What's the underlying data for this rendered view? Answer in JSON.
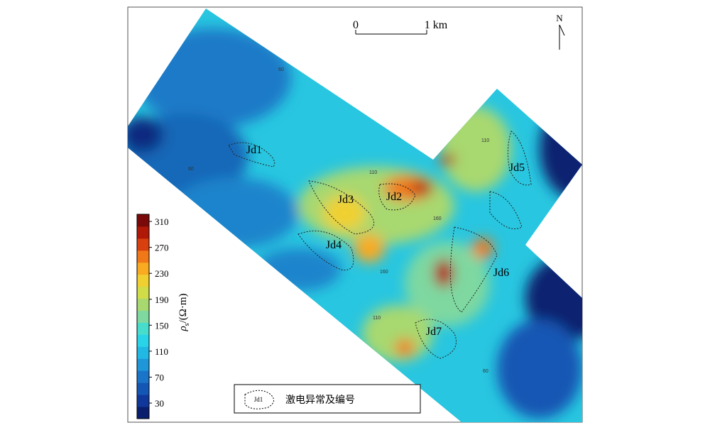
{
  "scale_bar": {
    "labels": [
      "0",
      "1 km"
    ]
  },
  "north": "N",
  "colorbar": {
    "symbol": "ρ",
    "subscript": "s",
    "unit": "/(Ω·m)",
    "ticks": [
      30,
      70,
      110,
      150,
      190,
      230,
      270,
      310
    ],
    "range": [
      6,
      321
    ],
    "colors": [
      "#0a1e6e",
      "#10389a",
      "#1456b4",
      "#1a74c8",
      "#1e96d8",
      "#22b8e4",
      "#2ad4e8",
      "#48dccc",
      "#7ed8a0",
      "#a8d870",
      "#d0dc48",
      "#f0d030",
      "#f8aa20",
      "#f07818",
      "#d84010",
      "#b01808",
      "#7a0a0a"
    ]
  },
  "anomalies": [
    "Jd1",
    "Jd2",
    "Jd3",
    "Jd4",
    "Jd5",
    "Jd6",
    "Jd7"
  ],
  "contour_labels": [
    "60",
    "60",
    "110",
    "110",
    "160",
    "160",
    "110",
    "60"
  ],
  "legend": {
    "sample": "Jd1",
    "text": "激电异常及编号"
  }
}
